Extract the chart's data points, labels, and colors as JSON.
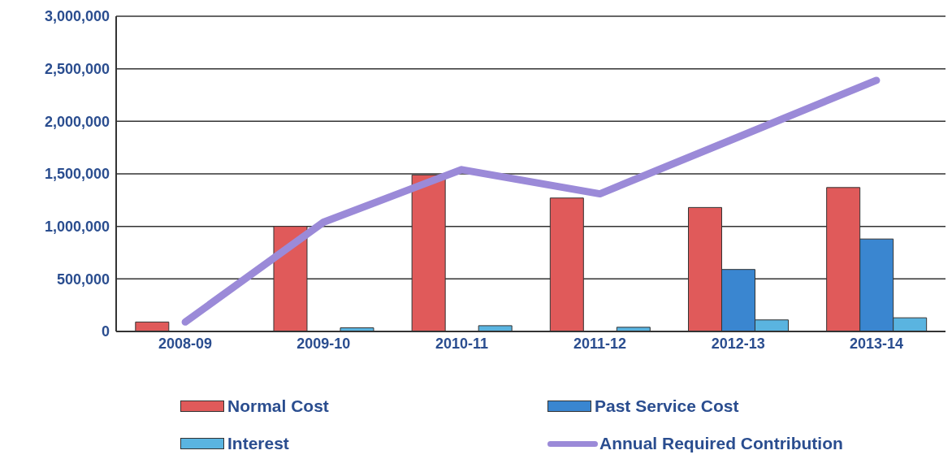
{
  "chart_data": {
    "type": "bar",
    "categories": [
      "2008-09",
      "2009-10",
      "2010-11",
      "2011-12",
      "2012-13",
      "2013-14"
    ],
    "series": [
      {
        "name": "Normal Cost",
        "color": "#e05a5a",
        "values": [
          90000,
          1000000,
          1490000,
          1270000,
          1180000,
          1370000
        ]
      },
      {
        "name": "Past Service Cost",
        "color": "#3a86d0",
        "values": [
          0,
          0,
          0,
          0,
          590000,
          880000
        ]
      },
      {
        "name": "Interest",
        "color": "#5ab4e0",
        "values": [
          0,
          35000,
          55000,
          40000,
          110000,
          130000
        ]
      },
      {
        "name": "Annual Required Contribution",
        "color": "#9b8ad8",
        "type": "line",
        "values": [
          90000,
          1040000,
          1540000,
          1310000,
          1850000,
          2390000
        ]
      }
    ],
    "ylim": [
      0,
      3000000
    ],
    "yticks": [
      {
        "value": 0,
        "label": "0"
      },
      {
        "value": 500000,
        "label": "500,000"
      },
      {
        "value": 1000000,
        "label": "1,000,000"
      },
      {
        "value": 1500000,
        "label": "1,500,000"
      },
      {
        "value": 2000000,
        "label": "2,000,000"
      },
      {
        "value": 2500000,
        "label": "2,500,000"
      },
      {
        "value": 3000000,
        "label": "3,000,000"
      }
    ],
    "grid": "y",
    "legend": "bottom",
    "marker": "none"
  }
}
